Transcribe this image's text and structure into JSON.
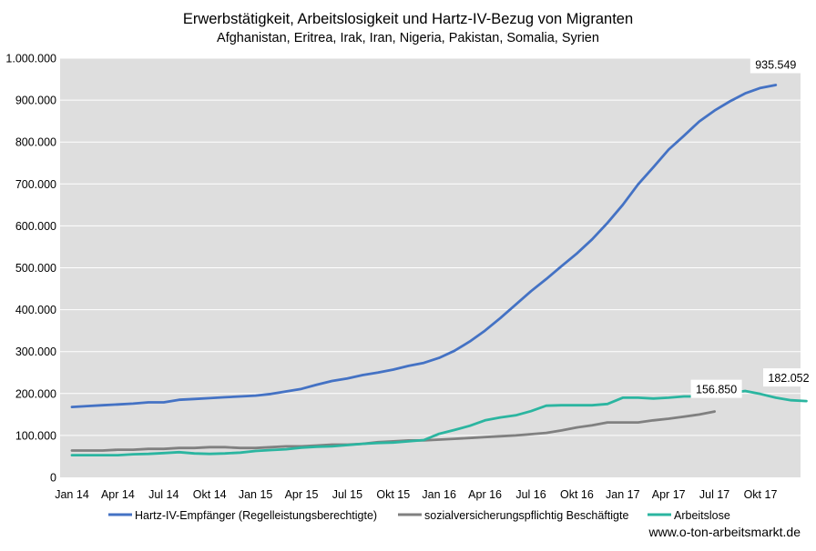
{
  "chart_data": {
    "type": "line",
    "title": "Erwerbstätigkeit, Arbeitslosigkeit und Hartz-IV-Bezug von Migranten",
    "subtitle": "Afghanistan,  Eritrea, Irak,  Iran,  Nigeria, Pakistan, Somalia, Syrien",
    "x_tick_labels": [
      "Jan 14",
      "Apr 14",
      "Jul 14",
      "Okt 14",
      "Jan 15",
      "Apr 15",
      "Jul 15",
      "Okt 15",
      "Jan 16",
      "Apr 16",
      "Jul 16",
      "Okt 16",
      "Jan 17",
      "Apr 17",
      "Jul 17",
      "Okt 17"
    ],
    "y_tick_labels": [
      "0",
      "100.000",
      "200.000",
      "300.000",
      "400.000",
      "500.000",
      "600.000",
      "700.000",
      "800.000",
      "900.000",
      "1.000.000"
    ],
    "ylim": [
      0,
      1000000
    ],
    "grid": true,
    "legend_position": "bottom",
    "footer": "www.o-ton-arbeitsmarkt.de",
    "series": [
      {
        "name": "Hartz-IV-Empfänger (Regelleistungsberechtigte)",
        "color": "#4472C4",
        "start": "Jan 14",
        "values": [
          168000,
          170000,
          172000,
          174000,
          176000,
          179000,
          179000,
          185000,
          187000,
          189000,
          191000,
          193000,
          195000,
          199000,
          205000,
          211000,
          221000,
          230000,
          236000,
          244000,
          250000,
          257000,
          266000,
          273000,
          285000,
          302000,
          324000,
          350000,
          380000,
          412000,
          444000,
          473000,
          504000,
          534000,
          568000,
          607000,
          650000,
          699000,
          740000,
          782000,
          815000,
          849000,
          875000,
          897000,
          916000,
          929000,
          936000
        ],
        "end_label": "935.549"
      },
      {
        "name": "sozialversicherungspflichtig Beschäftigte",
        "color": "#808080",
        "start": "Jan 14",
        "values": [
          64000,
          64000,
          64000,
          66000,
          66000,
          68000,
          68000,
          70000,
          70000,
          72000,
          72000,
          70000,
          70000,
          72000,
          74000,
          74000,
          76000,
          78000,
          78000,
          80000,
          84000,
          86000,
          88000,
          88000,
          90000,
          92000,
          94000,
          96000,
          98000,
          100000,
          103000,
          106000,
          112000,
          119000,
          124000,
          131000,
          131000,
          131000,
          136000,
          140000,
          145000,
          150000,
          157000
        ],
        "end_label": "156.850"
      },
      {
        "name": "Arbeitslose",
        "color": "#2BB5A0",
        "start": "Jan 14",
        "values": [
          53000,
          53000,
          53000,
          53000,
          55000,
          56000,
          58000,
          60000,
          57000,
          56000,
          57000,
          59000,
          63000,
          65000,
          67000,
          71000,
          73000,
          74000,
          77000,
          80000,
          82000,
          83000,
          86000,
          89000,
          104000,
          113000,
          123000,
          136000,
          143000,
          148000,
          158000,
          171000,
          172000,
          172000,
          172000,
          175000,
          190000,
          190000,
          188000,
          190000,
          193000,
          193000,
          197000,
          201000,
          206000,
          199000,
          190000,
          184000,
          182000
        ],
        "end_label": "182.052"
      }
    ]
  }
}
